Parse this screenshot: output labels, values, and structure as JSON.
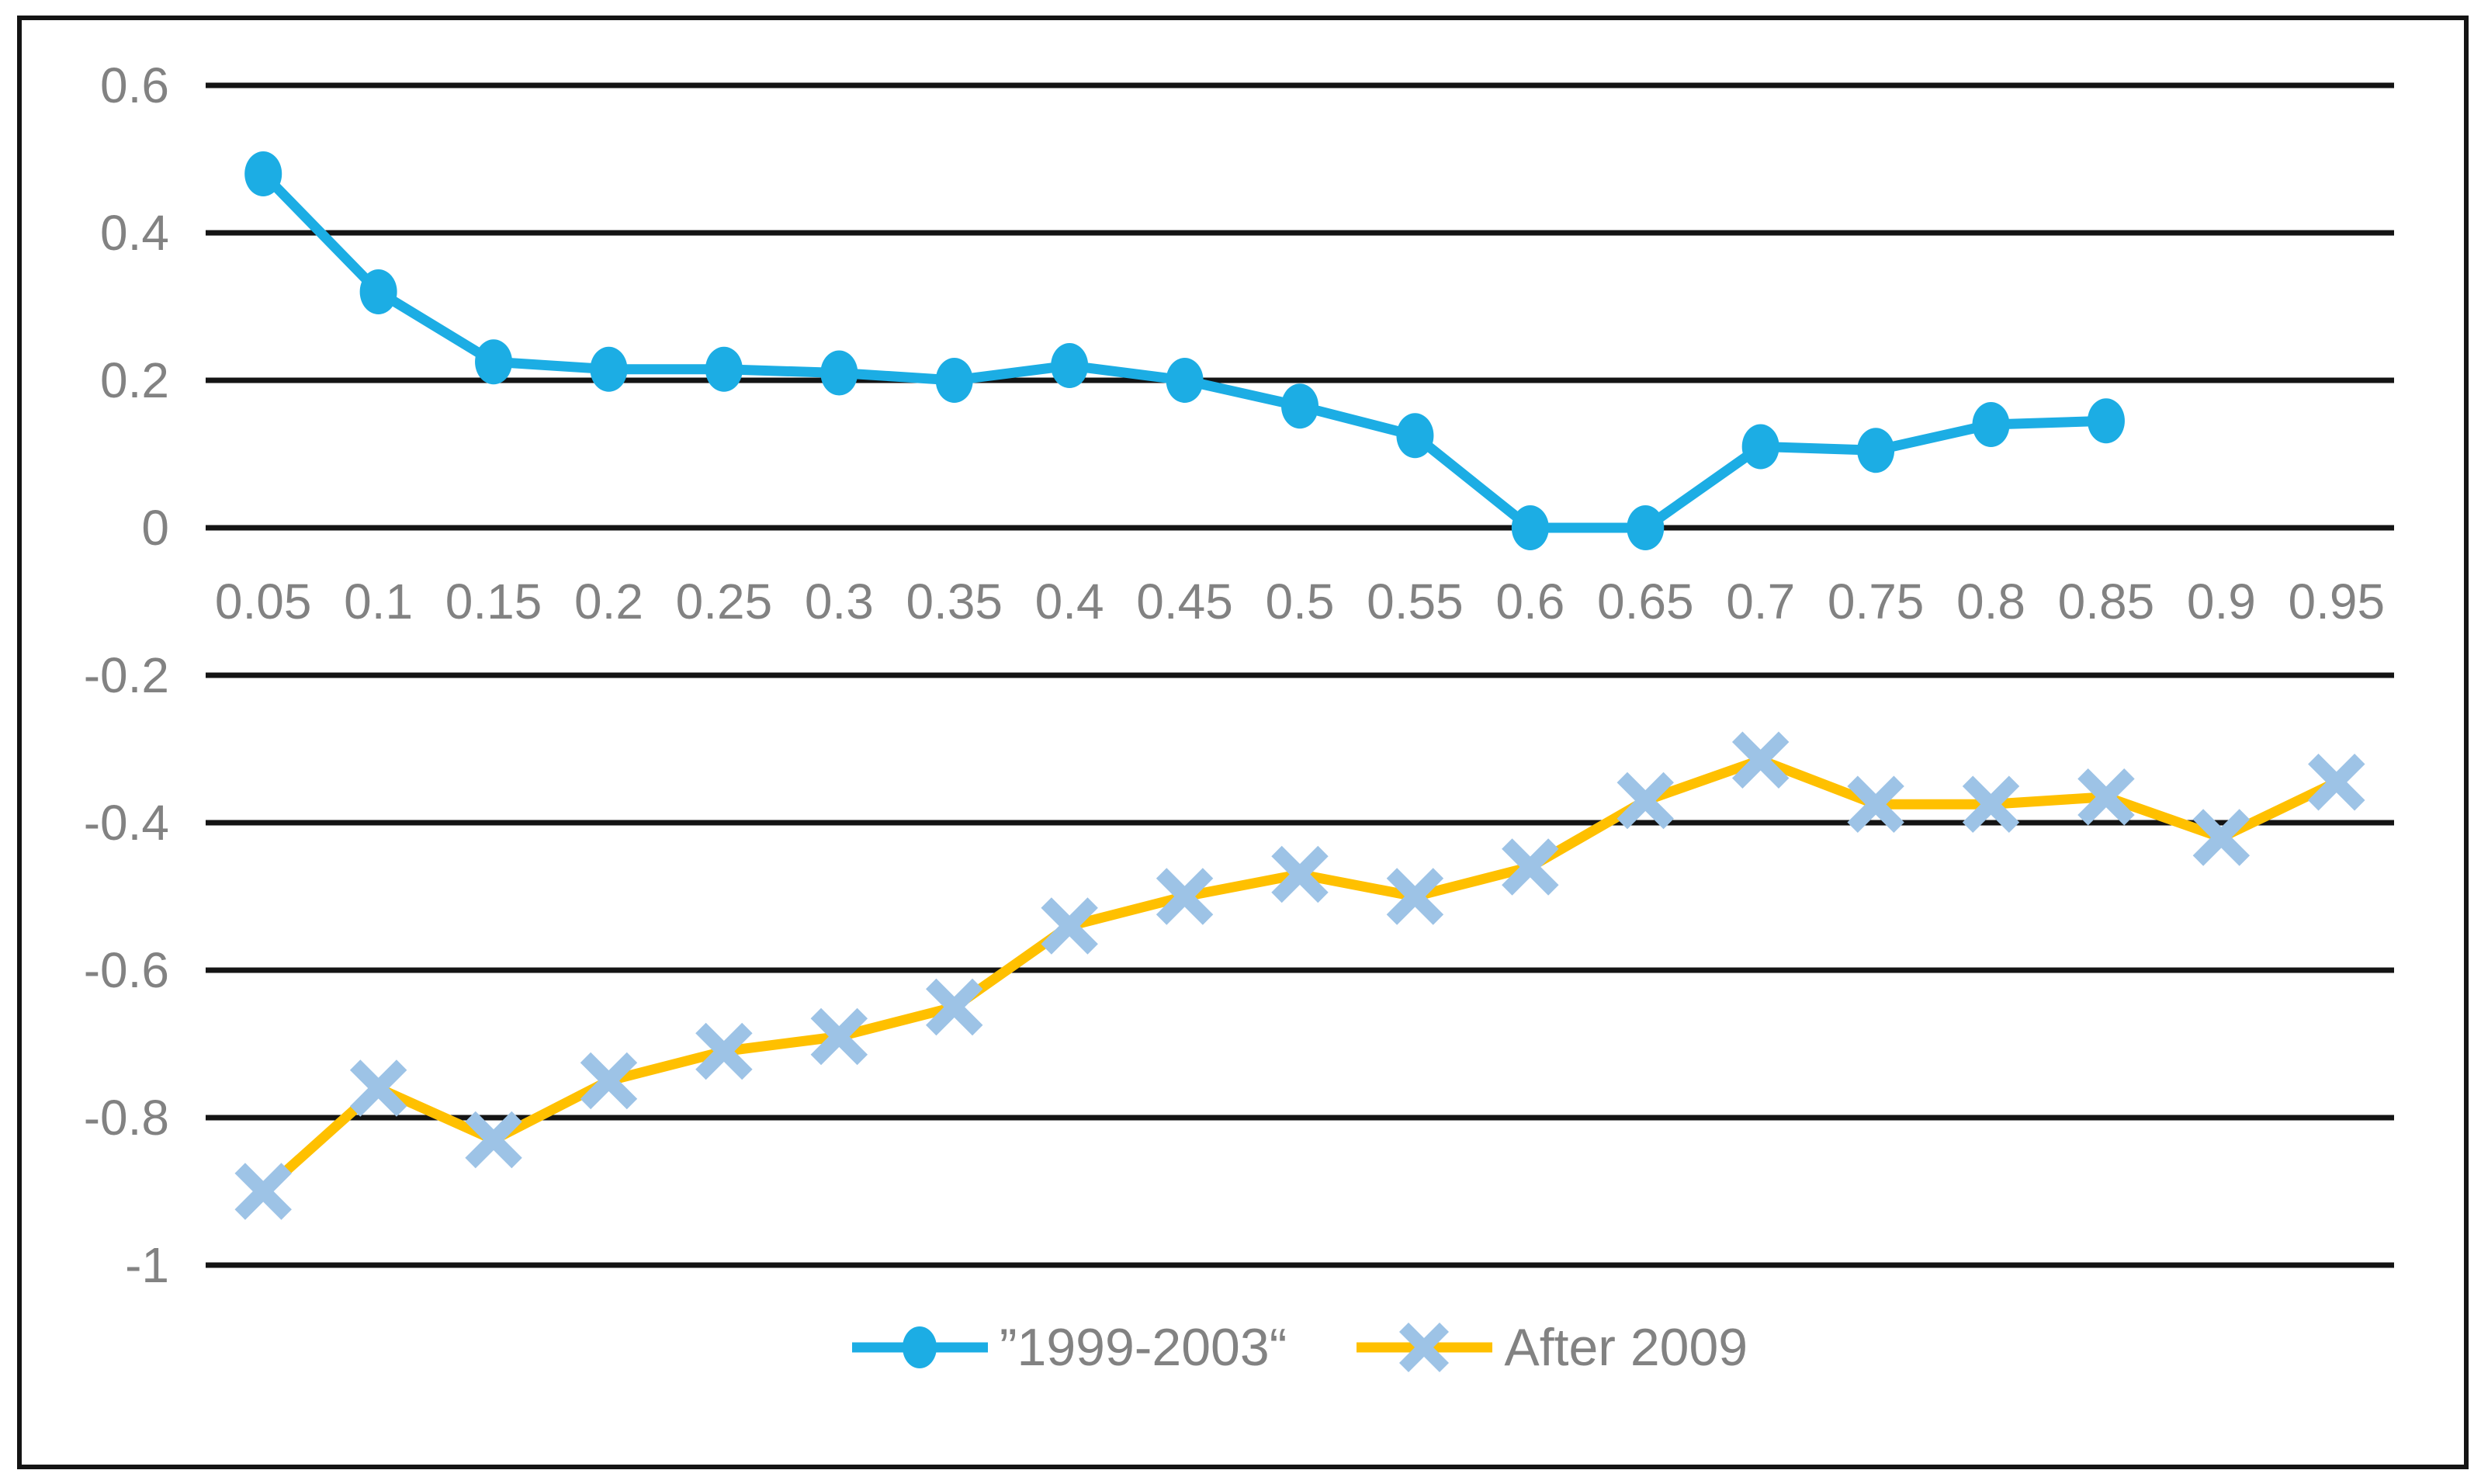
{
  "chart_data": {
    "type": "line",
    "title": "",
    "xlabel": "",
    "ylabel": "",
    "x_categories": [
      "0.05",
      "0.1",
      "0.15",
      "0.2",
      "0.25",
      "0.3",
      "0.35",
      "0.4",
      "0.45",
      "0.5",
      "0.55",
      "0.6",
      "0.65",
      "0.7",
      "0.75",
      "0.8",
      "0.85",
      "0.9",
      "0.95"
    ],
    "y_tick_labels": [
      "0.6",
      "0.4",
      "0.2",
      "0",
      "-0.2",
      "-0.4",
      "-0.6",
      "-0.8",
      "-1"
    ],
    "y_tick_values": [
      0.6,
      0.4,
      0.2,
      0,
      -0.2,
      -0.4,
      -0.6,
      -0.8,
      -1
    ],
    "ylim": [
      -1,
      0.6
    ],
    "grid": "horizontal",
    "legend_position": "bottom-center",
    "series": [
      {
        "name": "”1999-2003“",
        "color": "#1CADE4",
        "marker": "circle",
        "marker_color": "#1CADE4",
        "values": [
          0.48,
          0.32,
          0.225,
          0.215,
          0.215,
          0.21,
          0.2,
          0.22,
          0.2,
          0.165,
          0.125,
          0.0,
          0.0,
          0.11,
          0.105,
          0.14,
          0.145,
          null,
          null
        ]
      },
      {
        "name": "After 2009",
        "color": "#FFC000",
        "marker": "x",
        "marker_color": "#9DC3E6",
        "values": [
          -0.9,
          -0.76,
          -0.83,
          -0.75,
          -0.71,
          -0.69,
          -0.65,
          -0.54,
          -0.5,
          -0.47,
          -0.5,
          -0.46,
          -0.37,
          -0.315,
          -0.375,
          -0.375,
          -0.365,
          -0.42,
          -0.345
        ]
      }
    ],
    "colors": {
      "text": "#828282",
      "gridline": "#141414",
      "border": "#141414",
      "background": "#FFFFFF"
    }
  }
}
